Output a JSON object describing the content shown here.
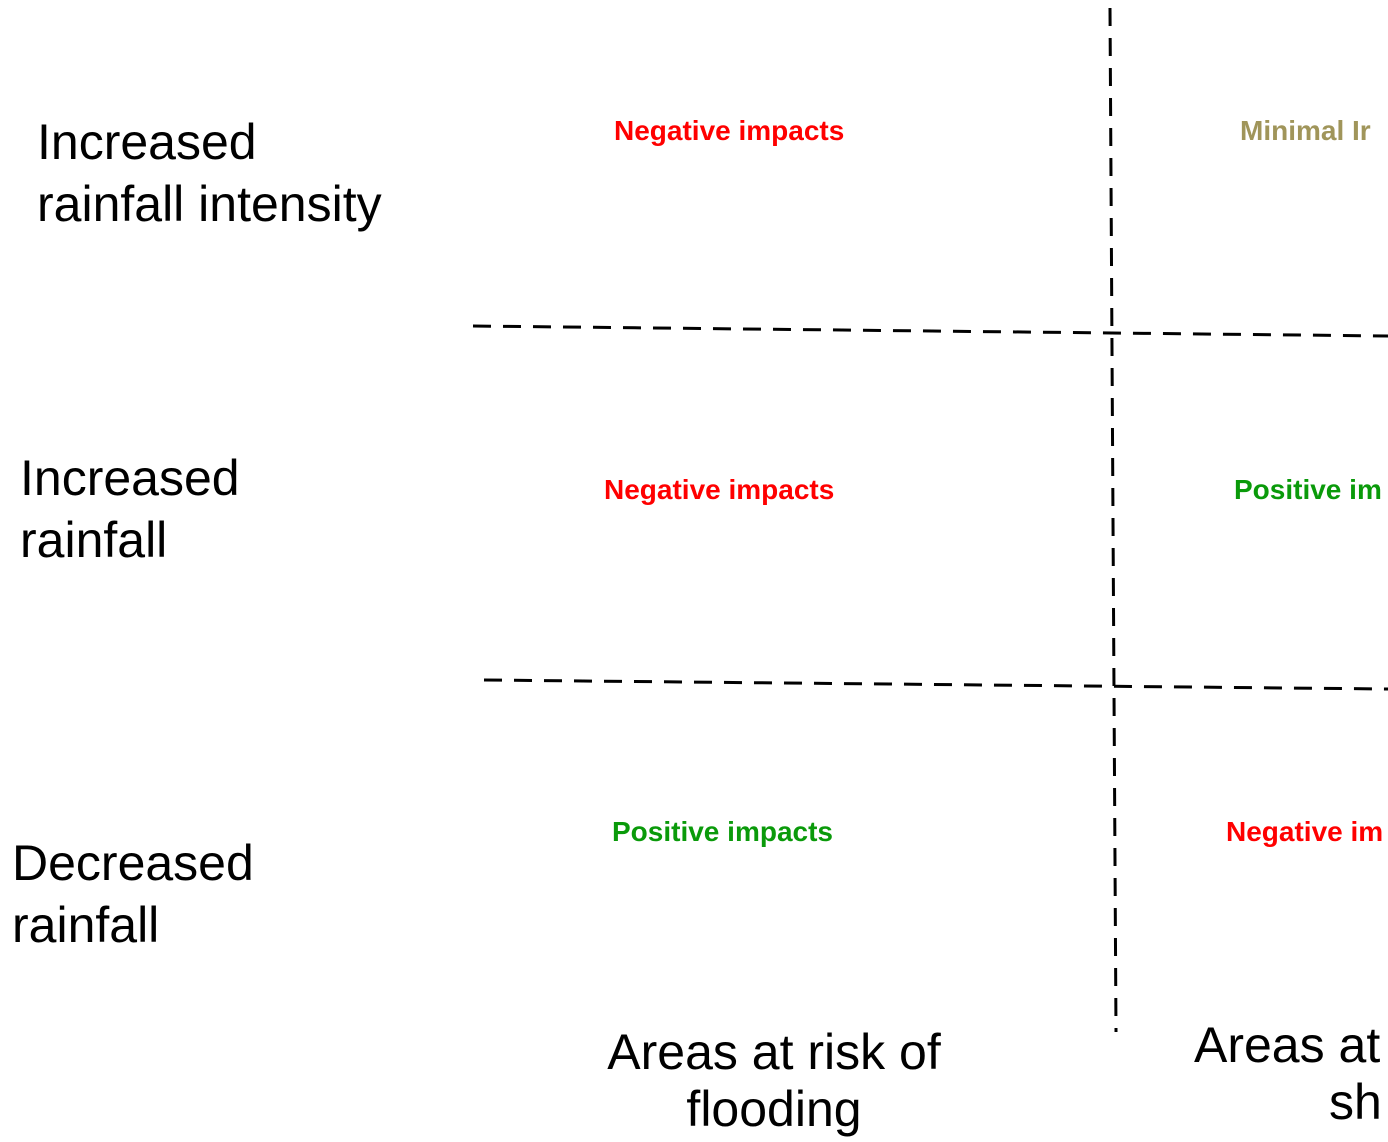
{
  "rows": [
    {
      "line1": "Increased",
      "line2": "rainfall intensity"
    },
    {
      "line1": "Increased",
      "line2": "rainfall"
    },
    {
      "line1": "Decreased",
      "line2": "rainfall"
    }
  ],
  "cells": [
    {
      "text": "Negative impacts",
      "color": "#ff0000"
    },
    {
      "text": "Minimal Ir",
      "color": "#a0955a"
    },
    {
      "text": "Negative impacts",
      "color": "#ff0000"
    },
    {
      "text": "Positive im",
      "color": "#0a9a0a"
    },
    {
      "text": "Positive impacts",
      "color": "#0a9a0a"
    },
    {
      "text": "Negative im",
      "color": "#ff0000"
    }
  ],
  "columns": [
    {
      "line1": "Areas at risk of",
      "line2": "flooding"
    },
    {
      "line1": "Areas at",
      "line2": "sh"
    }
  ]
}
